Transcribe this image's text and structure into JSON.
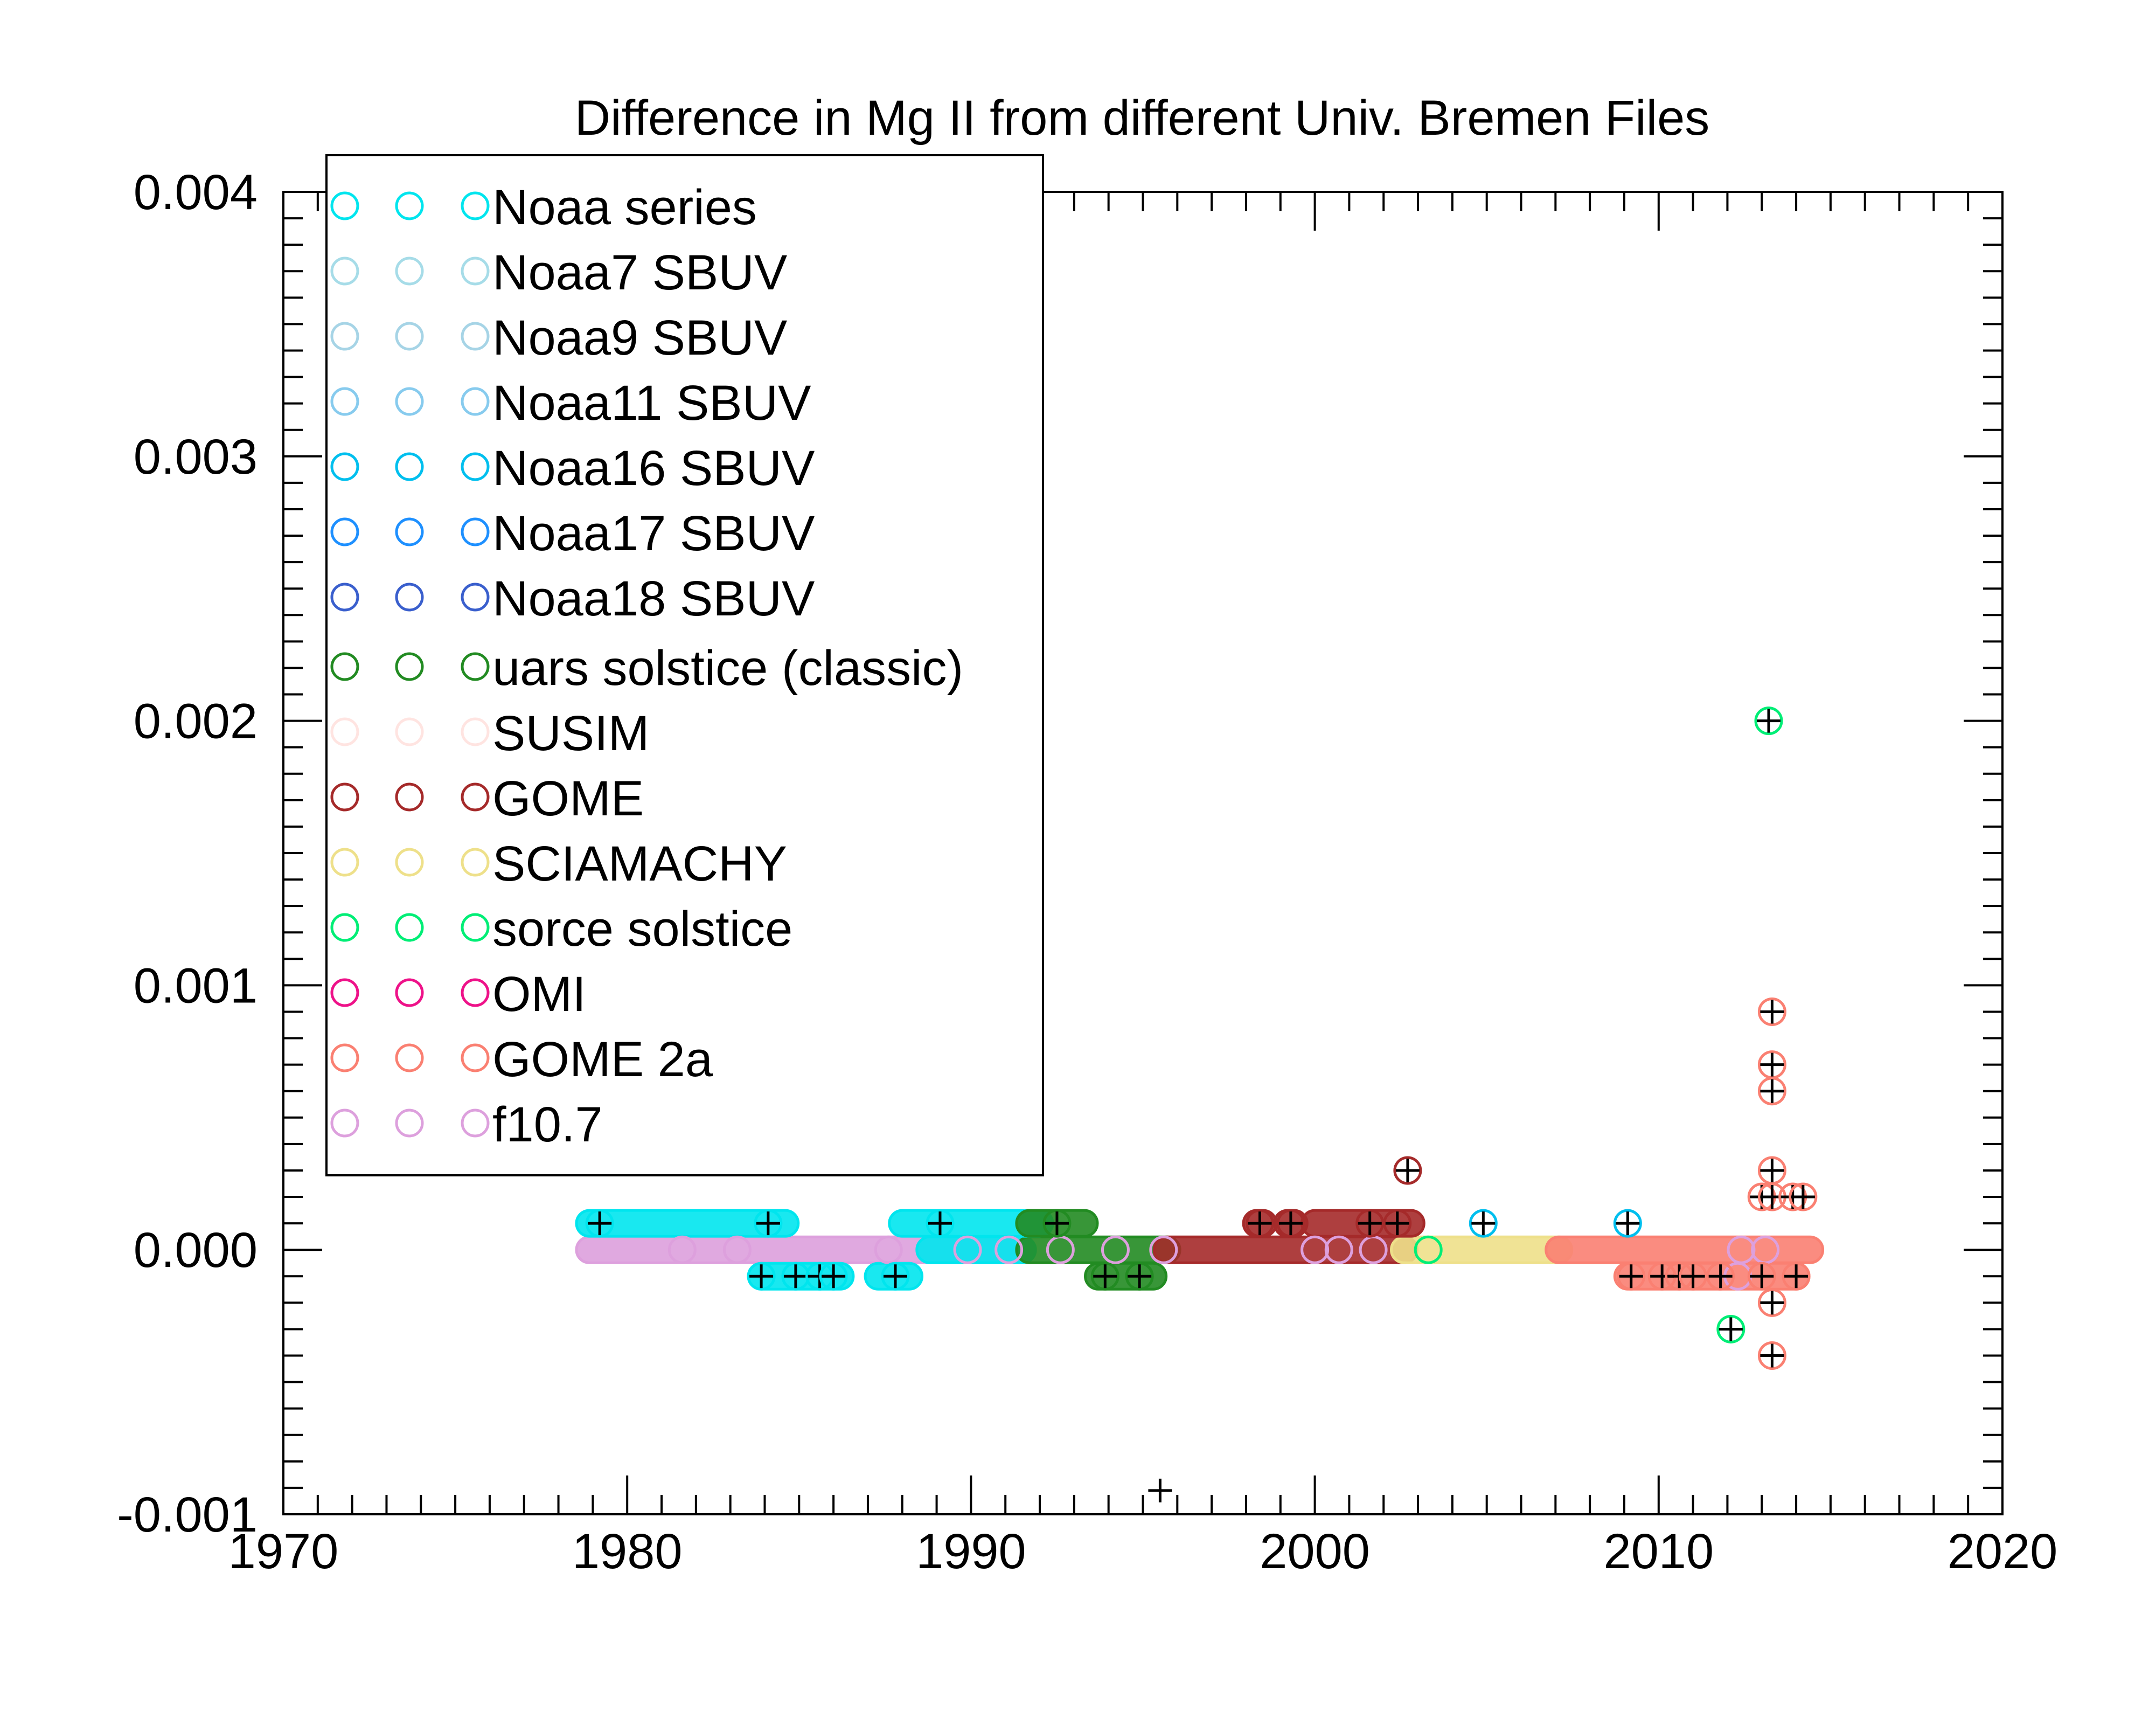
{
  "chart_data": {
    "type": "scatter",
    "title": "Difference in Mg II from different Univ. Bremen Files",
    "xlabel": "",
    "ylabel": "",
    "xlim": [
      1970,
      2020
    ],
    "ylim": [
      -0.001,
      0.004
    ],
    "xticks": [
      "1970",
      "1980",
      "1990",
      "2000",
      "2010",
      "2020"
    ],
    "yticks": [
      "-0.001",
      "0.000",
      "0.001",
      "0.002",
      "0.003",
      "0.004"
    ],
    "grid": false,
    "legend_position": "top-left",
    "legend": [
      {
        "name": "Noaa series",
        "color": "#00E5EE"
      },
      {
        "name": "Noaa7 SBUV",
        "color": "#A6DCE8"
      },
      {
        "name": "Noaa9 SBUV",
        "color": "#A6D4E6"
      },
      {
        "name": "Noaa11 SBUV",
        "color": "#87CBEE"
      },
      {
        "name": "Noaa16 SBUV",
        "color": "#00BFEE"
      },
      {
        "name": "Noaa17 SBUV",
        "color": "#1E90FF"
      },
      {
        "name": "Noaa18 SBUV",
        "color": "#3A5FCD"
      },
      {
        "name": " uars solstice (classic)",
        "color": "#228B22"
      },
      {
        "name": "SUSIM",
        "color": "#FFE4E1"
      },
      {
        "name": "GOME",
        "color": "#A52A2A"
      },
      {
        "name": "SCIAMACHY",
        "color": "#EEE08A"
      },
      {
        "name": "sorce solstice",
        "color": "#00EE76"
      },
      {
        "name": "OMI",
        "color": "#EE1289"
      },
      {
        "name": "GOME 2a",
        "color": "#FA8072"
      },
      {
        "name": "f10.7",
        "color": "#DDA0DD"
      }
    ],
    "series": [
      {
        "ref": "f10.7 diff (0)",
        "color": "#DDA0DD",
        "bands": [
          [
            1978.9,
            1991.5,
            0.0
          ]
        ]
      },
      {
        "ref": "Noaa series (0)",
        "color": "#00E5EE",
        "bands": [
          [
            1988.8,
            1991.5,
            0.0
          ]
        ]
      },
      {
        "ref": "uars solstice (0)",
        "color": "#228B22",
        "bands": [
          [
            1991.7,
            1995.7,
            0.0
          ]
        ]
      },
      {
        "ref": "GOME (0)",
        "color": "#A52A2A",
        "bands": [
          [
            1995.7,
            2002.6,
            0.0
          ]
        ]
      },
      {
        "ref": "SCIAMACHY (0)",
        "color": "#EEE08A",
        "bands": [
          [
            2002.6,
            2007.1,
            0.0
          ]
        ]
      },
      {
        "ref": "GOME 2a (0)",
        "color": "#FA8072",
        "bands": [
          [
            2007.1,
            2014.4,
            0.0
          ]
        ]
      },
      {
        "ref": "Noaa +0.0001",
        "color": "#00E5EE",
        "bands": [
          [
            1978.9,
            1984.6,
            0.0001
          ],
          [
            1988.0,
            1992.0,
            0.0001
          ]
        ]
      },
      {
        "ref": "uars +0.0001",
        "color": "#228B22",
        "bands": [
          [
            1991.7,
            1993.3,
            0.0001
          ]
        ]
      },
      {
        "ref": "GOME +0.0001",
        "color": "#A52A2A",
        "bands": [
          [
            1998.3,
            1998.5,
            0.0001
          ],
          [
            1999.2,
            1999.4,
            0.0001
          ],
          [
            2000.0,
            2002.8,
            0.0001
          ]
        ]
      },
      {
        "ref": "Noaa -0.0001",
        "color": "#00E5EE",
        "bands": [
          [
            1983.9,
            1986.2,
            -0.0001
          ],
          [
            1987.3,
            1988.2,
            -0.0001
          ]
        ]
      },
      {
        "ref": "uars -0.0001",
        "color": "#228B22",
        "bands": [
          [
            1993.7,
            1995.3,
            -0.0001
          ]
        ]
      },
      {
        "ref": "GOME 2a -0.0001",
        "color": "#FA8072",
        "bands": [
          [
            2009.1,
            2014.0,
            -0.0001
          ]
        ]
      }
    ],
    "open_points": [
      {
        "x": 1981.6,
        "y": 0.0,
        "color": "#DDA0DD"
      },
      {
        "x": 1983.2,
        "y": 0.0,
        "color": "#DDA0DD"
      },
      {
        "x": 1987.6,
        "y": 0.0,
        "color": "#DDA0DD"
      },
      {
        "x": 1989.9,
        "y": 0.0,
        "color": "#DDA0DD"
      },
      {
        "x": 1991.1,
        "y": 0.0,
        "color": "#DDA0DD"
      },
      {
        "x": 1992.6,
        "y": 0.0,
        "color": "#DDA0DD"
      },
      {
        "x": 1994.2,
        "y": 0.0,
        "color": "#DDA0DD"
      },
      {
        "x": 1995.6,
        "y": 0.0,
        "color": "#DDA0DD"
      },
      {
        "x": 2000.0,
        "y": 0.0,
        "color": "#DDA0DD"
      },
      {
        "x": 2000.7,
        "y": 0.0,
        "color": "#DDA0DD"
      },
      {
        "x": 2001.7,
        "y": 0.0,
        "color": "#DDA0DD"
      },
      {
        "x": 2003.3,
        "y": 0.0,
        "color": "#00EE76"
      },
      {
        "x": 2012.4,
        "y": 0.0,
        "color": "#DDA0DD"
      },
      {
        "x": 2013.1,
        "y": 0.0,
        "color": "#DDA0DD"
      },
      {
        "x": 2012.3,
        "y": -0.0001,
        "color": "#DDA0DD"
      }
    ],
    "marked_points": [
      {
        "x": 2013.2,
        "y": 0.002,
        "color": "#00EE76"
      },
      {
        "x": 2013.3,
        "y": 0.0009,
        "color": "#FA8072"
      },
      {
        "x": 2013.3,
        "y": 0.0007,
        "color": "#FA8072"
      },
      {
        "x": 2013.3,
        "y": 0.0006,
        "color": "#FA8072"
      },
      {
        "x": 2013.3,
        "y": 0.0003,
        "color": "#FA8072"
      },
      {
        "x": 2013.0,
        "y": 0.0002,
        "color": "#FA8072"
      },
      {
        "x": 2013.3,
        "y": 0.0002,
        "color": "#FA8072"
      },
      {
        "x": 2013.9,
        "y": 0.0002,
        "color": "#FA8072"
      },
      {
        "x": 2014.2,
        "y": 0.0002,
        "color": "#FA8072"
      },
      {
        "x": 2002.7,
        "y": 0.0003,
        "color": "#A52A2A"
      },
      {
        "x": 2004.9,
        "y": 0.0001,
        "color": "#00BFEE"
      },
      {
        "x": 2009.1,
        "y": 0.0001,
        "color": "#00BFEE"
      },
      {
        "x": 1998.4,
        "y": 0.0001,
        "color": "#A52A2A"
      },
      {
        "x": 1999.3,
        "y": 0.0001,
        "color": "#A52A2A"
      },
      {
        "x": 2001.6,
        "y": 0.0001,
        "color": "#A52A2A"
      },
      {
        "x": 2002.4,
        "y": 0.0001,
        "color": "#A52A2A"
      },
      {
        "x": 1979.2,
        "y": 0.0001,
        "color": "#00E5EE"
      },
      {
        "x": 1984.1,
        "y": 0.0001,
        "color": "#00E5EE"
      },
      {
        "x": 1989.1,
        "y": 0.0001,
        "color": "#00E5EE"
      },
      {
        "x": 1992.5,
        "y": 0.0001,
        "color": "#228B22"
      },
      {
        "x": 1983.9,
        "y": -0.0001,
        "color": "#00E5EE"
      },
      {
        "x": 1984.9,
        "y": -0.0001,
        "color": "#00E5EE"
      },
      {
        "x": 1985.6,
        "y": -0.0001,
        "color": "#00E5EE"
      },
      {
        "x": 1986.0,
        "y": -0.0001,
        "color": "#00E5EE"
      },
      {
        "x": 1987.8,
        "y": -0.0001,
        "color": "#00E5EE"
      },
      {
        "x": 1993.9,
        "y": -0.0001,
        "color": "#228B22"
      },
      {
        "x": 1994.9,
        "y": -0.0001,
        "color": "#228B22"
      },
      {
        "x": 2009.2,
        "y": -0.0001,
        "color": "#FA8072"
      },
      {
        "x": 2010.1,
        "y": -0.0001,
        "color": "#FA8072"
      },
      {
        "x": 2010.6,
        "y": -0.0001,
        "color": "#FA8072"
      },
      {
        "x": 2011.0,
        "y": -0.0001,
        "color": "#FA8072"
      },
      {
        "x": 2011.8,
        "y": -0.0001,
        "color": "#FA8072"
      },
      {
        "x": 2013.0,
        "y": -0.0001,
        "color": "#FA8072"
      },
      {
        "x": 2014.0,
        "y": -0.0001,
        "color": "#FA8072"
      },
      {
        "x": 2013.3,
        "y": -0.0002,
        "color": "#FA8072"
      },
      {
        "x": 2012.1,
        "y": -0.0003,
        "color": "#00EE76"
      },
      {
        "x": 2013.3,
        "y": -0.0004,
        "color": "#FA8072"
      }
    ],
    "plus_only_points": [
      {
        "x": 1995.5,
        "y": -0.00091
      }
    ]
  }
}
